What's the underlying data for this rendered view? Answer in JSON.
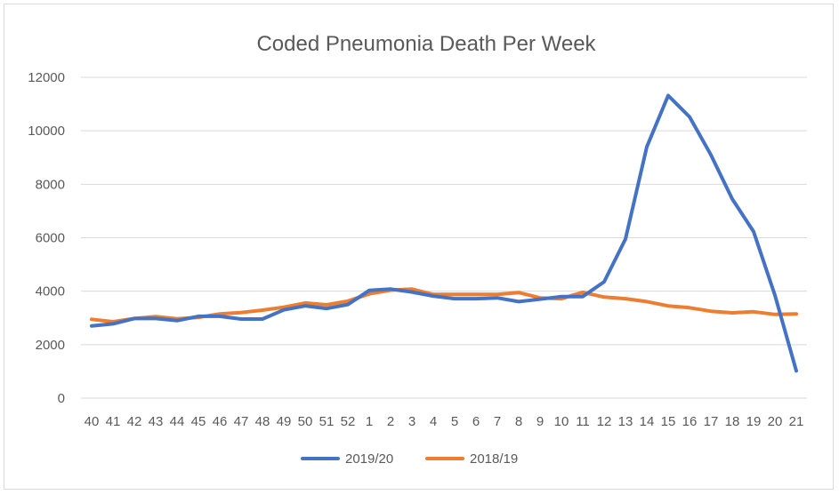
{
  "chart_data": {
    "type": "line",
    "title": "Coded Pneumonia Death Per Week",
    "xlabel": "",
    "ylabel": "",
    "ylim": [
      0,
      12000
    ],
    "yticks": [
      0,
      2000,
      4000,
      6000,
      8000,
      10000,
      12000
    ],
    "grid": "horizontal",
    "legend": "bottom",
    "categories": [
      "40",
      "41",
      "42",
      "43",
      "44",
      "45",
      "46",
      "47",
      "48",
      "49",
      "50",
      "51",
      "52",
      "1",
      "2",
      "3",
      "4",
      "5",
      "6",
      "7",
      "8",
      "9",
      "10",
      "11",
      "12",
      "13",
      "14",
      "15",
      "16",
      "17",
      "18",
      "19",
      "20",
      "21"
    ],
    "series": [
      {
        "name": "2019/20",
        "color": "#4472c4",
        "values": [
          2700,
          2780,
          2980,
          2980,
          2900,
          3060,
          3060,
          2960,
          2960,
          3300,
          3450,
          3350,
          3500,
          4030,
          4080,
          3970,
          3820,
          3720,
          3720,
          3750,
          3610,
          3700,
          3800,
          3800,
          4350,
          5950,
          9400,
          11320,
          10520,
          9100,
          7450,
          6230,
          3850,
          1020
        ]
      },
      {
        "name": "2018/19",
        "color": "#ed7d31",
        "values": [
          2950,
          2860,
          2980,
          3050,
          2970,
          3020,
          3150,
          3200,
          3290,
          3400,
          3560,
          3490,
          3630,
          3900,
          4040,
          4080,
          3880,
          3880,
          3880,
          3880,
          3950,
          3750,
          3720,
          3960,
          3780,
          3720,
          3610,
          3450,
          3380,
          3250,
          3190,
          3230,
          3130,
          3150
        ]
      }
    ]
  }
}
